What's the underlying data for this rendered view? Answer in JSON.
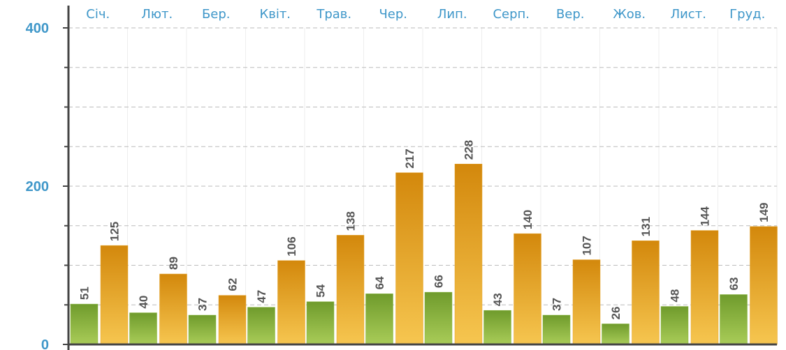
{
  "chart_data": {
    "type": "bar",
    "categories": [
      "Січ.",
      "Лют.",
      "Бер.",
      "Квіт.",
      "Трав.",
      "Чер.",
      "Лип.",
      "Серп.",
      "Вер.",
      "Жов.",
      "Лист.",
      "Груд."
    ],
    "series": [
      {
        "color": "#8db83f",
        "values": [
          51,
          40,
          37,
          47,
          54,
          64,
          66,
          43,
          37,
          26,
          48,
          63
        ]
      },
      {
        "color": "#e6a42a",
        "values": [
          125,
          89,
          62,
          106,
          138,
          217,
          228,
          140,
          107,
          131,
          144,
          149
        ]
      }
    ],
    "ylim": [
      0,
      400
    ],
    "yticks": [
      0,
      200,
      400
    ],
    "minor_yticks": [
      50,
      100,
      150,
      250,
      300,
      350
    ],
    "grid": true
  }
}
